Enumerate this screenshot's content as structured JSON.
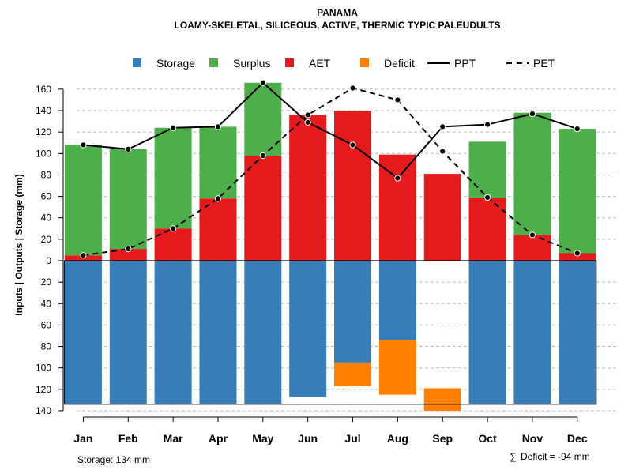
{
  "chart_data": {
    "type": "bar",
    "title": "PANAMA",
    "subtitle": "LOAMY-SKELETAL, SILICEOUS, ACTIVE, THERMIC TYPIC PALEUDULTS",
    "ylabel": "Inputs | Outputs | Storage    (mm)",
    "categories": [
      "Jan",
      "Feb",
      "Mar",
      "Apr",
      "May",
      "Jun",
      "Jul",
      "Aug",
      "Sep",
      "Oct",
      "Nov",
      "Dec"
    ],
    "ylim": [
      -140,
      170
    ],
    "yticks": [
      160,
      140,
      120,
      100,
      80,
      60,
      40,
      20,
      0,
      -20,
      -40,
      -60,
      -80,
      -100,
      -120,
      -140
    ],
    "ytick_labels": [
      "160",
      "140",
      "120",
      "100",
      "80",
      "60",
      "40",
      "20",
      "0",
      "20",
      "40",
      "60",
      "80",
      "100",
      "120",
      "140"
    ],
    "grid": true,
    "legend": [
      {
        "label": "Storage",
        "kind": "box",
        "color": "#377EB8"
      },
      {
        "label": "Surplus",
        "kind": "box",
        "color": "#4DAF4A"
      },
      {
        "label": "AET",
        "kind": "box",
        "color": "#E41A1C"
      },
      {
        "label": "Deficit",
        "kind": "box",
        "color": "#FF7F00"
      },
      {
        "label": "PPT",
        "kind": "solid",
        "color": "#000000"
      },
      {
        "label": "PET",
        "kind": "dashed",
        "color": "#000000"
      }
    ],
    "colors": {
      "storage": "#377EB8",
      "surplus": "#4DAF4A",
      "aet": "#E41A1C",
      "deficit": "#FF7F00",
      "line": "#000000",
      "grid": "#BEBEBE"
    },
    "series": [
      {
        "name": "AET",
        "values": [
          5,
          11,
          30,
          58,
          98,
          136,
          140,
          99,
          81,
          59,
          24,
          7
        ]
      },
      {
        "name": "Surplus",
        "values": [
          103,
          93,
          94,
          67,
          68,
          0,
          0,
          0,
          0,
          52,
          114,
          116
        ]
      },
      {
        "name": "Storage",
        "values": [
          134,
          134,
          134,
          134,
          134,
          127,
          95,
          74,
          0,
          134,
          134,
          134
        ]
      },
      {
        "name": "Deficit",
        "values": [
          0,
          0,
          0,
          0,
          0,
          0,
          22,
          51,
          21,
          0,
          0,
          0
        ]
      },
      {
        "name": "PPT",
        "values": [
          108,
          104,
          124,
          125,
          166,
          129,
          108,
          77,
          125,
          127,
          137,
          123
        ]
      },
      {
        "name": "PET",
        "values": [
          5,
          11,
          30,
          58,
          98,
          136,
          161,
          150,
          102,
          59,
          24,
          7
        ]
      }
    ],
    "deficit_offset": [
      0,
      0,
      0,
      0,
      0,
      0,
      95,
      74,
      119,
      0,
      0,
      0
    ],
    "storage_capacity": 134
  },
  "footer": {
    "storage_text": "Storage: 134 mm",
    "deficit_symbol": "∑",
    "deficit_text": "Deficit = -94 mm"
  }
}
